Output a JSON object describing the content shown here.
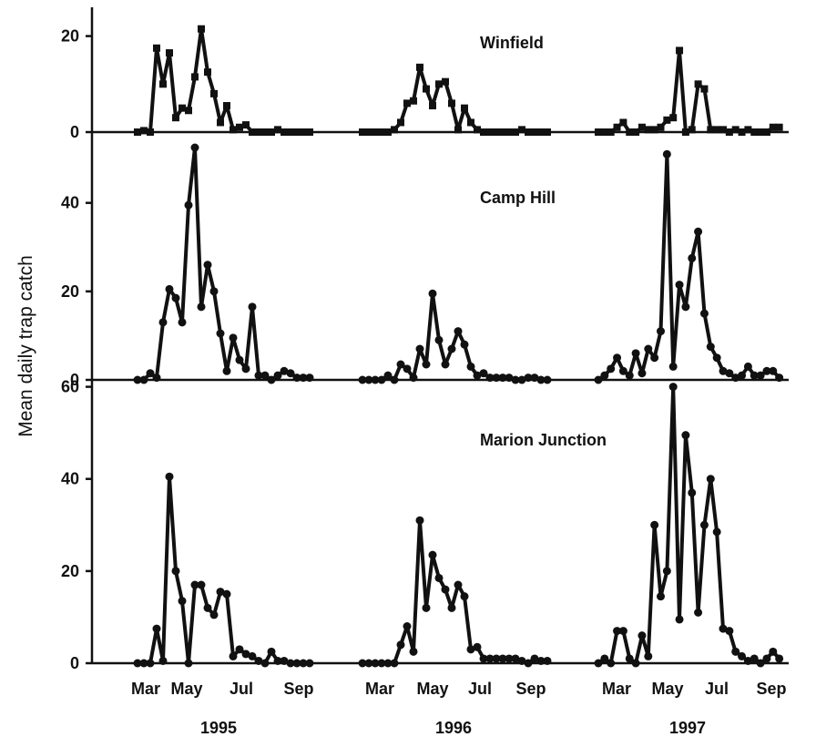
{
  "chart_data": {
    "type": "line",
    "ylabel": "Mean daily trap catch",
    "years": [
      "1995",
      "1996",
      "1997"
    ],
    "month_ticks": [
      "Mar",
      "May",
      "Jul",
      "Sep"
    ],
    "panels": [
      {
        "title": "Winfield",
        "marker": "square",
        "ylim": [
          0,
          26
        ],
        "yticks": [
          0,
          20
        ],
        "series": [
          {
            "year": "1995",
            "x": [
              0,
              1,
              2,
              3,
              4,
              5,
              6,
              7,
              8,
              9,
              10,
              11,
              12,
              13,
              14,
              15,
              16,
              17,
              18,
              19,
              20,
              21,
              22,
              23,
              24,
              25,
              26,
              27
            ],
            "y": [
              0,
              0.3,
              0,
              17.5,
              10,
              16.5,
              3,
              5,
              4.5,
              11.5,
              21.5,
              12.5,
              8,
              2,
              5.5,
              0.5,
              1,
              1.5,
              0,
              0,
              0,
              0,
              0.5,
              0,
              0,
              0,
              0,
              0
            ]
          },
          {
            "year": "1996",
            "x": [
              0,
              1,
              2,
              3,
              4,
              5,
              6,
              7,
              8,
              9,
              10,
              11,
              12,
              13,
              14,
              15,
              16,
              17,
              18,
              19,
              20,
              21,
              22,
              23,
              24,
              25,
              26,
              27,
              28,
              29
            ],
            "y": [
              0,
              0,
              0,
              0,
              0,
              0.5,
              2,
              6,
              6.5,
              13.5,
              9,
              5.5,
              10,
              10.5,
              6,
              0.5,
              5,
              2,
              0.5,
              0,
              0,
              0,
              0,
              0,
              0,
              0.5,
              0,
              0,
              0,
              0
            ]
          },
          {
            "year": "1997",
            "x": [
              0,
              1,
              2,
              3,
              4,
              5,
              6,
              7,
              8,
              9,
              10,
              11,
              12,
              13,
              14,
              15,
              16,
              17,
              18,
              19,
              20,
              21,
              22,
              23,
              24,
              25,
              26,
              27,
              28,
              29
            ],
            "y": [
              0,
              0,
              0,
              1,
              2,
              0,
              0,
              1,
              0.5,
              0.5,
              1,
              2.5,
              3,
              17,
              0,
              0.5,
              10,
              9,
              0.5,
              0.5,
              0.5,
              0,
              0.5,
              0,
              0.5,
              0,
              0,
              0,
              1,
              1
            ]
          }
        ]
      },
      {
        "title": "Camp Hill",
        "marker": "circle",
        "ylim": [
          0,
          56
        ],
        "yticks": [
          0,
          20,
          40
        ],
        "series": [
          {
            "year": "1995",
            "x": [
              0,
              1,
              2,
              3,
              4,
              5,
              6,
              7,
              8,
              9,
              10,
              11,
              12,
              13,
              14,
              15,
              16,
              17,
              18,
              19,
              20,
              21,
              22,
              23,
              24,
              25,
              26,
              27
            ],
            "y": [
              0,
              0,
              1.5,
              0.5,
              13,
              20.5,
              18.5,
              13,
              39.5,
              52.5,
              16.5,
              26,
              20,
              10.5,
              2,
              9.5,
              4.5,
              2.5,
              16.5,
              1,
              1,
              0,
              1,
              2,
              1.5,
              0.5,
              0.5,
              0.5
            ]
          },
          {
            "year": "1996",
            "x": [
              0,
              1,
              2,
              3,
              4,
              5,
              6,
              7,
              8,
              9,
              10,
              11,
              12,
              13,
              14,
              15,
              16,
              17,
              18,
              19,
              20,
              21,
              22,
              23,
              24,
              25,
              26,
              27,
              28,
              29
            ],
            "y": [
              0,
              0,
              0,
              0,
              1,
              0,
              3.5,
              2.5,
              0.5,
              7,
              3.5,
              19.5,
              9,
              3.5,
              7,
              11,
              8,
              3,
              1,
              1.5,
              0.5,
              0.5,
              0.5,
              0.5,
              0,
              0,
              0.5,
              0.5,
              0,
              0
            ]
          },
          {
            "year": "1997",
            "x": [
              0,
              1,
              2,
              3,
              4,
              5,
              6,
              7,
              8,
              9,
              10,
              11,
              12,
              13,
              14,
              15,
              16,
              17,
              18,
              19,
              20,
              21,
              22,
              23,
              24,
              25,
              26,
              27,
              28,
              29
            ],
            "y": [
              0,
              1,
              2.5,
              5,
              2,
              1,
              6,
              1.5,
              7,
              5,
              11,
              51,
              3,
              21.5,
              16.5,
              27.5,
              33.5,
              15,
              7.5,
              5,
              2,
              1.5,
              0.5,
              1,
              3,
              1,
              1,
              2,
              2,
              0.5
            ]
          }
        ]
      },
      {
        "title": "Marion Junction",
        "marker": "circle",
        "ylim": [
          0,
          61.5
        ],
        "yticks": [
          0,
          20,
          40,
          60
        ],
        "series": [
          {
            "year": "1995",
            "x": [
              0,
              1,
              2,
              3,
              4,
              5,
              6,
              7,
              8,
              9,
              10,
              11,
              12,
              13,
              14,
              15,
              16,
              17,
              18,
              19,
              20,
              21,
              22,
              23,
              24,
              25,
              26,
              27
            ],
            "y": [
              0,
              0,
              0,
              7.5,
              0.5,
              40.5,
              20,
              13.5,
              0,
              17,
              17,
              12,
              10.5,
              15.5,
              15,
              1.5,
              3,
              2,
              1.5,
              0.5,
              0,
              2.5,
              0.5,
              0.5,
              0,
              0,
              0,
              0
            ]
          },
          {
            "year": "1996",
            "x": [
              0,
              1,
              2,
              3,
              4,
              5,
              6,
              7,
              8,
              9,
              10,
              11,
              12,
              13,
              14,
              15,
              16,
              17,
              18,
              19,
              20,
              21,
              22,
              23,
              24,
              25,
              26,
              27,
              28,
              29
            ],
            "y": [
              0,
              0,
              0,
              0,
              0,
              0,
              4,
              8,
              2.5,
              31,
              12,
              23.5,
              18.5,
              16,
              12,
              17,
              14.5,
              3,
              3.5,
              1,
              1,
              1,
              1,
              1,
              1,
              0.5,
              0,
              1,
              0.5,
              0.5
            ]
          },
          {
            "year": "1997",
            "x": [
              0,
              1,
              2,
              3,
              4,
              5,
              6,
              7,
              8,
              9,
              10,
              11,
              12,
              13,
              14,
              15,
              16,
              17,
              18,
              19,
              20,
              21,
              22,
              23,
              24,
              25,
              26,
              27,
              28,
              29
            ],
            "y": [
              0,
              1,
              0,
              7,
              7,
              1,
              0,
              6,
              1.5,
              30,
              14.5,
              20,
              60,
              9.5,
              49.5,
              37,
              11,
              30,
              40,
              28.5,
              7.5,
              7,
              2.5,
              1.5,
              0.5,
              1,
              0,
              1,
              2.5,
              1
            ]
          }
        ]
      }
    ]
  }
}
